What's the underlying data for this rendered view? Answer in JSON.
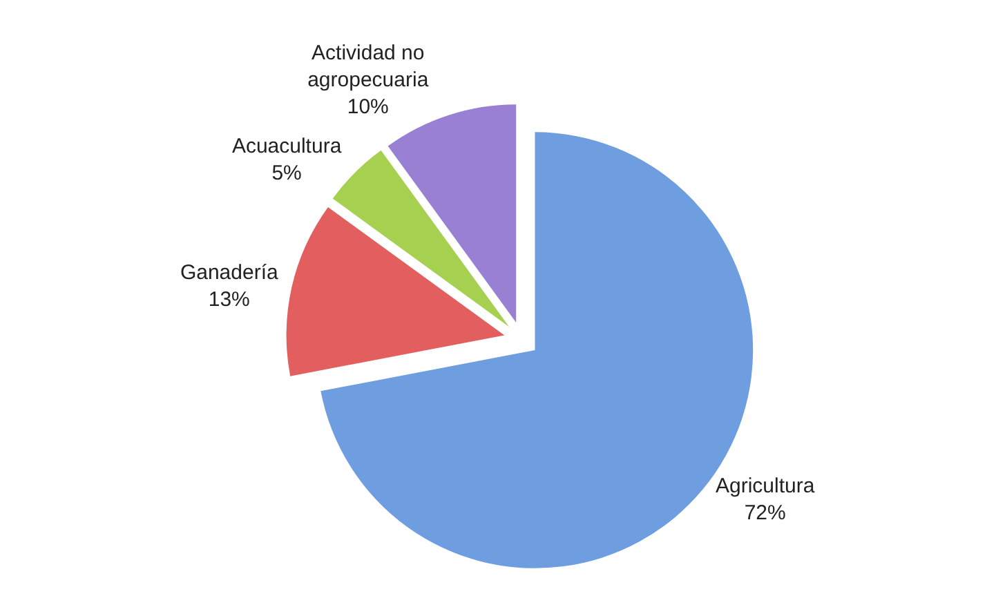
{
  "chart_data": {
    "type": "pie",
    "categories": [
      "Agricultura",
      "Ganadería",
      "Acuacultura",
      "Actividad no agropecuaria"
    ],
    "values": [
      72,
      13,
      5,
      10
    ],
    "colors": [
      "#6e9ee0",
      "#e35f5f",
      "#a6d04f",
      "#9a80d2"
    ],
    "value_labels": [
      "72%",
      "13%",
      "5%",
      "10%"
    ],
    "legend": false
  }
}
